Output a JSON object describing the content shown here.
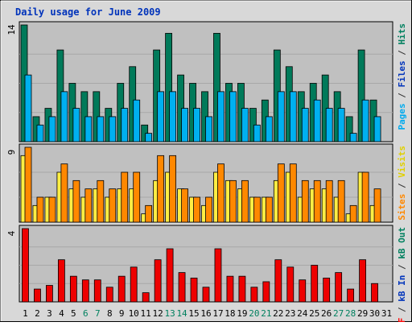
{
  "chart_data": {
    "type": "bar",
    "title": "Daily usage for June 2009",
    "categories": [
      "1",
      "2",
      "3",
      "4",
      "5",
      "6",
      "7",
      "8",
      "9",
      "10",
      "11",
      "12",
      "13",
      "14",
      "15",
      "16",
      "17",
      "18",
      "19",
      "20",
      "21",
      "22",
      "23",
      "24",
      "25",
      "26",
      "27",
      "28",
      "29",
      "30",
      "31"
    ],
    "weekend_days": [
      6,
      7,
      13,
      14,
      20,
      21,
      27,
      28
    ],
    "panels": [
      {
        "name": "hits-files-pages",
        "ymax": 14,
        "ymax_label": "14",
        "ylabel_parts": [
          {
            "text": "Pages",
            "color": "#00aaee"
          },
          {
            "text": " / ",
            "color": "#333333"
          },
          {
            "text": "Files",
            "color": "#0033bb"
          },
          {
            "text": " / ",
            "color": "#333333"
          },
          {
            "text": "Hits",
            "color": "#00805f"
          }
        ],
        "series": [
          {
            "name": "Hits",
            "color": "#007a5a",
            "values": [
              14,
              3,
              4,
              11,
              7,
              6,
              6,
              4,
              7,
              9,
              2,
              11,
              13,
              8,
              7,
              6,
              13,
              7,
              7,
              4,
              5,
              11,
              9,
              6,
              7,
              8,
              6,
              3,
              11,
              5,
              0
            ]
          },
          {
            "name": "Files",
            "color": "#00b0f0",
            "values": [
              8,
              2,
              3,
              6,
              4,
              3,
              3,
              3,
              4,
              5,
              1,
              6,
              6,
              4,
              4,
              3,
              6,
              6,
              4,
              2,
              3,
              6,
              6,
              4,
              5,
              4,
              4,
              1,
              5,
              3,
              0
            ]
          }
        ]
      },
      {
        "name": "visits-sites",
        "ymax": 9,
        "ymax_label": "9",
        "ylabel_parts": [
          {
            "text": "Sites",
            "color": "#ff8800"
          },
          {
            "text": " / ",
            "color": "#333333"
          },
          {
            "text": "Visits",
            "color": "#e0d000"
          }
        ],
        "series": [
          {
            "name": "Visits",
            "color": "#ffee44",
            "values": [
              8,
              2,
              3,
              6,
              4,
              3,
              4,
              3,
              4,
              4,
              1,
              5,
              6,
              4,
              3,
              2,
              6,
              5,
              4,
              3,
              3,
              5,
              6,
              3,
              4,
              4,
              3,
              1,
              6,
              2,
              0
            ]
          },
          {
            "name": "Sites",
            "color": "#ff8800",
            "values": [
              9,
              3,
              3,
              7,
              5,
              4,
              5,
              4,
              6,
              6,
              2,
              8,
              8,
              4,
              3,
              3,
              7,
              5,
              5,
              3,
              3,
              7,
              7,
              5,
              5,
              5,
              5,
              2,
              6,
              4,
              0
            ]
          }
        ]
      },
      {
        "name": "kbytes",
        "ymax": 4,
        "ymax_label": "4",
        "ylabel_parts": [
          {
            "text": "kB F",
            "color": "#ff0000"
          },
          {
            "text": " / ",
            "color": "#333333"
          },
          {
            "text": "kB In",
            "color": "#0033bb"
          },
          {
            "text": " / ",
            "color": "#333333"
          },
          {
            "text": "kB Out",
            "color": "#00805f"
          }
        ],
        "series": [
          {
            "name": "kB F",
            "color": "#ee0000",
            "values": [
              4,
              0.7,
              0.9,
              2.3,
              1.4,
              1.2,
              1.2,
              0.8,
              1.4,
              1.9,
              0.5,
              2.3,
              2.9,
              1.6,
              1.3,
              0.8,
              2.9,
              1.4,
              1.4,
              0.8,
              1.1,
              2.3,
              1.9,
              1.2,
              2.0,
              1.3,
              1.6,
              0.7,
              2.3,
              1.0,
              0
            ]
          }
        ]
      }
    ]
  }
}
